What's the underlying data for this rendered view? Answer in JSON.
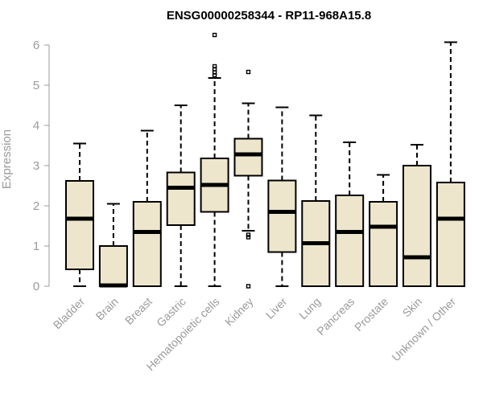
{
  "chart_data": {
    "type": "boxplot",
    "title": "ENSG00000258344 - RP11-968A15.8",
    "ylabel": "Expression",
    "xlabel": "",
    "ylim": [
      0,
      6.2
    ],
    "yticks": [
      0,
      1,
      2,
      3,
      4,
      5,
      6
    ],
    "categories": [
      "Bladder",
      "Brain",
      "Breast",
      "Gastric",
      "Hematopoietic cells",
      "Kidney",
      "Liver",
      "Lung",
      "Pancreas",
      "Prostate",
      "Skin",
      "Unknown / Other"
    ],
    "boxes": [
      {
        "category": "Bladder",
        "whisker_low": 0.0,
        "q1": 0.42,
        "median": 1.68,
        "q3": 2.62,
        "whisker_high": 3.55,
        "outliers": []
      },
      {
        "category": "Brain",
        "whisker_low": 0.0,
        "q1": 0.0,
        "median": 0.02,
        "q3": 1.0,
        "whisker_high": 2.05,
        "outliers": []
      },
      {
        "category": "Breast",
        "whisker_low": 0.0,
        "q1": 0.0,
        "median": 1.35,
        "q3": 2.1,
        "whisker_high": 3.87,
        "outliers": []
      },
      {
        "category": "Gastric",
        "whisker_low": 0.0,
        "q1": 1.52,
        "median": 2.45,
        "q3": 2.83,
        "whisker_high": 4.5,
        "outliers": []
      },
      {
        "category": "Hematopoietic cells",
        "whisker_low": 0.0,
        "q1": 1.85,
        "median": 2.52,
        "q3": 3.18,
        "whisker_high": 5.18,
        "outliers": [
          5.25,
          5.32,
          5.4,
          5.47,
          6.25
        ]
      },
      {
        "category": "Kidney",
        "whisker_low": 1.38,
        "q1": 2.75,
        "median": 3.28,
        "q3": 3.67,
        "whisker_high": 4.55,
        "outliers": [
          1.22,
          1.28,
          5.33,
          0.0
        ]
      },
      {
        "category": "Liver",
        "whisker_low": 0.0,
        "q1": 0.85,
        "median": 1.85,
        "q3": 2.63,
        "whisker_high": 4.45,
        "outliers": []
      },
      {
        "category": "Lung",
        "whisker_low": 0.0,
        "q1": 0.0,
        "median": 1.07,
        "q3": 2.12,
        "whisker_high": 4.25,
        "outliers": []
      },
      {
        "category": "Pancreas",
        "whisker_low": 0.0,
        "q1": 0.0,
        "median": 1.35,
        "q3": 2.26,
        "whisker_high": 3.58,
        "outliers": []
      },
      {
        "category": "Prostate",
        "whisker_low": 0.0,
        "q1": 0.0,
        "median": 1.48,
        "q3": 2.1,
        "whisker_high": 2.77,
        "outliers": []
      },
      {
        "category": "Skin",
        "whisker_low": 0.0,
        "q1": 0.0,
        "median": 0.72,
        "q3": 3.0,
        "whisker_high": 3.52,
        "outliers": []
      },
      {
        "category": "Unknown / Other",
        "whisker_low": 0.0,
        "q1": 0.0,
        "median": 1.68,
        "q3": 2.58,
        "whisker_high": 6.07,
        "outliers": []
      }
    ],
    "colors": {
      "box_fill": "#ede6cc",
      "box_stroke": "#000000",
      "median": "#000000",
      "axis_text": "#9a9a9a",
      "axis_line": "#9a9a9a"
    },
    "grid": false,
    "legend": "none"
  }
}
